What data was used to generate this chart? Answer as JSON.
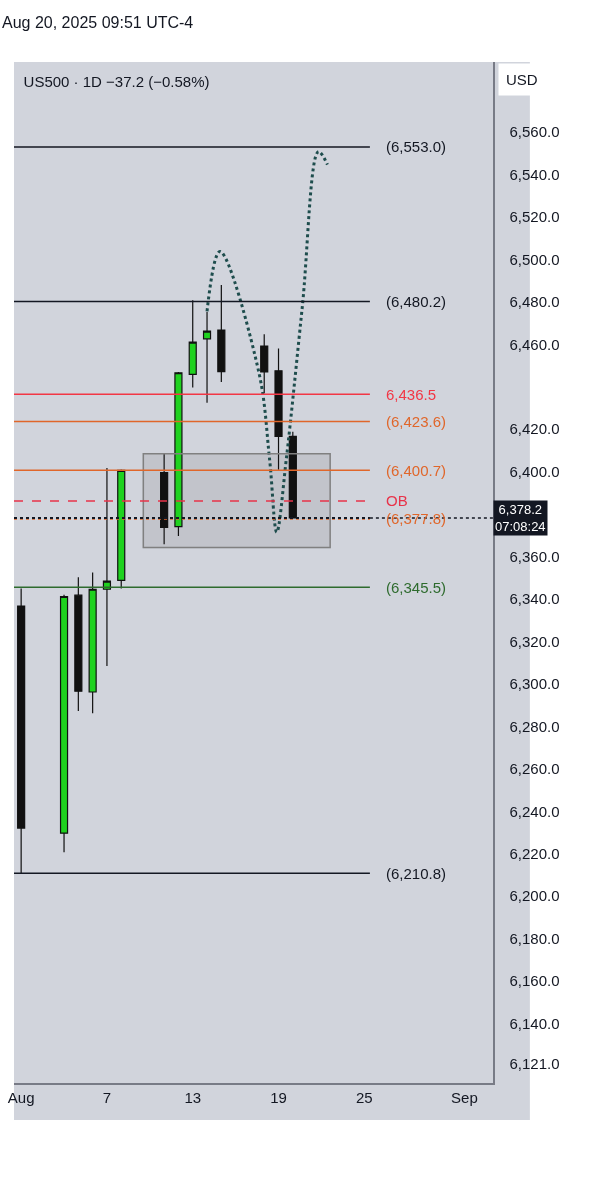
{
  "chart_data": {
    "type": "candlestick",
    "title": "US500 · 1D −37.2 (−0.58%)",
    "annotations": [
      "Aug 20, 2025 09:51 UTC-4",
      "USD"
    ],
    "x": [
      "2025-08-01",
      "2025-08-04",
      "2025-08-05",
      "2025-08-06",
      "2025-08-07",
      "2025-08-08",
      "2025-08-11",
      "2025-08-12",
      "2025-08-13",
      "2025-08-14",
      "2025-08-15",
      "2025-08-18",
      "2025-08-19",
      "2025-08-20"
    ],
    "ohlc": [
      [
        6336.7,
        6345.0,
        6210.8,
        6232.1
      ],
      [
        6229.7,
        6342.0,
        6220.7,
        6341.2
      ],
      [
        6341.8,
        6350.3,
        6287.2,
        6296.6
      ],
      [
        6296.2,
        6352.5,
        6286.2,
        6344.6
      ],
      [
        6344.6,
        6401.7,
        6308.5,
        6348.4
      ],
      [
        6348.8,
        6401.0,
        6345.0,
        6400.6
      ],
      [
        6399.6,
        6408.5,
        6365.8,
        6373.7
      ],
      [
        6374.1,
        6447.0,
        6369.7,
        6446.6
      ],
      [
        6445.8,
        6480.7,
        6439.6,
        6461.0
      ],
      [
        6462.6,
        6475.2,
        6432.5,
        6466.2
      ],
      [
        6466.7,
        6488.0,
        6442.3,
        6447.1
      ],
      [
        6459.2,
        6464.7,
        6436.9,
        6447.0
      ],
      [
        6447.5,
        6458.0,
        6400.9,
        6416.6
      ],
      [
        6416.6,
        6418.8,
        6378.2,
        6378.2
      ]
    ],
    "series": [
      {
        "type": "line",
        "color": "#1e4d4d",
        "line_style": "dotted",
        "x": [
          "2025-08-14",
          "2025-08-14T21:36",
          "2025-08-17T15:00",
          "2025-08-18T09:00",
          "2025-08-18T21:00",
          "2025-08-19T13:00",
          "2025-08-20T16:00",
          "2025-08-21T19:00",
          "2025-08-22T10:00"
        ],
        "values": [
          6475.5,
          6503.7,
          6446.8,
          6405.8,
          6371.5,
          6405.8,
          6477.9,
          6550.8,
          6544.7
        ]
      }
    ],
    "colors": [
      "#111111",
      "#1fd21f",
      "#111111",
      "#1fd21f",
      "#1fd21f",
      "#1fd21f",
      "#111111",
      "#1fd21f",
      "#1fd21f",
      "#1fd21f",
      "#111111",
      "#111111",
      "#111111",
      "#111111"
    ],
    "xlim": [
      "2025-07-31T12:00",
      "2025-09-03T00:00"
    ],
    "xticks": [
      {
        "value": "2025-08-01",
        "label": "Aug"
      },
      {
        "value": "2025-08-07",
        "label": "7"
      },
      {
        "value": "2025-08-13",
        "label": "13"
      },
      {
        "value": "2025-08-19",
        "label": "19"
      },
      {
        "value": "2025-08-25",
        "label": "25"
      },
      {
        "value": "2025-09-01",
        "label": "Sep"
      }
    ],
    "ylim": [
      6112,
      6593
    ],
    "yticks": [
      {
        "value": 6121,
        "label": "6,121.0"
      },
      {
        "value": 6140,
        "label": "6,140.0"
      },
      {
        "value": 6160,
        "label": "6,160.0"
      },
      {
        "value": 6180,
        "label": "6,180.0"
      },
      {
        "value": 6200,
        "label": "6,200.0"
      },
      {
        "value": 6220,
        "label": "6,220.0"
      },
      {
        "value": 6240,
        "label": "6,240.0"
      },
      {
        "value": 6260,
        "label": "6,260.0"
      },
      {
        "value": 6280,
        "label": "6,280.0"
      },
      {
        "value": 6300,
        "label": "6,300.0"
      },
      {
        "value": 6320,
        "label": "6,320.0"
      },
      {
        "value": 6340,
        "label": "6,340.0"
      },
      {
        "value": 6360,
        "label": "6,360.0"
      },
      {
        "value": 6400,
        "label": "6,400.0"
      },
      {
        "value": 6420,
        "label": "6,420.0"
      },
      {
        "value": 6460,
        "label": "6,460.0"
      },
      {
        "value": 6480,
        "label": "6,480.0"
      },
      {
        "value": 6500,
        "label": "6,500.0"
      },
      {
        "value": 6520,
        "label": "6,520.0"
      },
      {
        "value": 6540,
        "label": "6,540.0"
      },
      {
        "value": 6560,
        "label": "6,560.0"
      }
    ],
    "grid": false,
    "ref_lines": [
      {
        "axis": "y",
        "value": 6553.0,
        "label": "(6,553.0)",
        "color": "#131722"
      },
      {
        "axis": "y",
        "value": 6480.2,
        "label": "(6,480.2)",
        "color": "#131722"
      },
      {
        "axis": "y",
        "value": 6436.5,
        "label": "6,436.5",
        "color": "#f23645"
      },
      {
        "axis": "y",
        "value": 6423.6,
        "label": "(6,423.6)",
        "color": "#e0662a"
      },
      {
        "axis": "y",
        "value": 6400.7,
        "label": "(6,400.7)",
        "color": "#e0662a"
      },
      {
        "axis": "y",
        "value": 6386.2,
        "label": "OB",
        "color": "#e8334a",
        "line_style": "dashed"
      },
      {
        "axis": "y",
        "value": 6377.8,
        "label": "(6,377.8)",
        "color": "#e0662a",
        "line_style": "dotted"
      },
      {
        "axis": "y",
        "value": 6378.2,
        "label": "6,378.2\n07:08:24",
        "color": "#131722",
        "line_style": "dotted"
      },
      {
        "axis": "y",
        "value": 6345.5,
        "label": "(6,345.5)",
        "color": "#2e6b2e"
      },
      {
        "axis": "y",
        "value": 6210.8,
        "label": "(6,210.8)",
        "color": "#131722"
      }
    ],
    "bands": [
      {
        "axis": "y",
        "from": 6364.3,
        "to": 6408.5,
        "color": "#808080"
      }
    ]
  }
}
